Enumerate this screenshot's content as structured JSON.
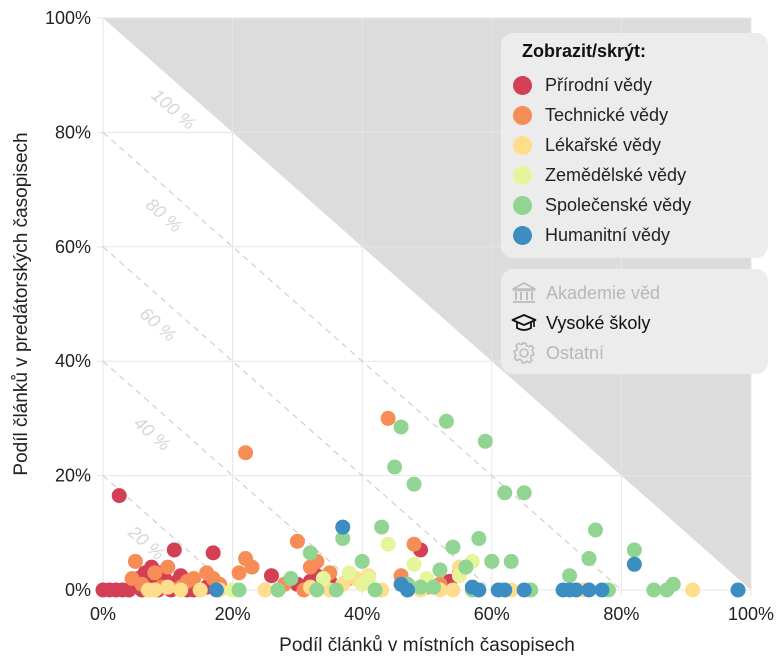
{
  "chart_data": {
    "type": "scatter",
    "xlabel": "Podíl článků v místních časopisech",
    "ylabel": "Podíl článků v predátorských časopisech",
    "xlim": [
      0,
      100
    ],
    "ylim": [
      0,
      100
    ],
    "x_ticks": [
      "0%",
      "20%",
      "40%",
      "60%",
      "80%",
      "100%"
    ],
    "y_ticks": [
      "0%",
      "20%",
      "40%",
      "60%",
      "80%",
      "100%"
    ],
    "diagonal_labels": [
      "100 %",
      "80 %",
      "60 %",
      "40 %",
      "20 %"
    ],
    "grid": true,
    "legend_position": "top-right",
    "series": [
      {
        "name": "Přírodní vědy",
        "color": "#d33f54",
        "points": [
          [
            0,
            0
          ],
          [
            1,
            0
          ],
          [
            2,
            0
          ],
          [
            2.5,
            16.5
          ],
          [
            3,
            0
          ],
          [
            4,
            0
          ],
          [
            4.5,
            0.5
          ],
          [
            5,
            1
          ],
          [
            5.5,
            2
          ],
          [
            6,
            0
          ],
          [
            6.5,
            3
          ],
          [
            7,
            2
          ],
          [
            7.5,
            4
          ],
          [
            8,
            1
          ],
          [
            8.5,
            0
          ],
          [
            9,
            3
          ],
          [
            9.5,
            2
          ],
          [
            10,
            1
          ],
          [
            10.5,
            0
          ],
          [
            11,
            7
          ],
          [
            11.5,
            1.5
          ],
          [
            12,
            2.5
          ],
          [
            13,
            0
          ],
          [
            13.5,
            1
          ],
          [
            14,
            0
          ],
          [
            16,
            0.5
          ],
          [
            17,
            6.5
          ],
          [
            26,
            2.5
          ],
          [
            30,
            1
          ],
          [
            32,
            1.5
          ],
          [
            33,
            2.5
          ],
          [
            35,
            1.5
          ],
          [
            49,
            7
          ],
          [
            53.5,
            1.5
          ]
        ]
      },
      {
        "name": "Technické vědy",
        "color": "#f78d56",
        "points": [
          [
            4.5,
            2
          ],
          [
            5,
            5
          ],
          [
            6,
            1
          ],
          [
            7,
            0
          ],
          [
            8,
            3
          ],
          [
            9,
            0.5
          ],
          [
            10,
            4
          ],
          [
            12,
            0.5
          ],
          [
            13,
            1.5
          ],
          [
            14,
            2
          ],
          [
            15,
            0
          ],
          [
            16,
            3
          ],
          [
            17,
            2
          ],
          [
            18,
            1
          ],
          [
            21,
            3
          ],
          [
            22,
            5.5
          ],
          [
            22,
            24
          ],
          [
            23,
            4
          ],
          [
            28,
            1
          ],
          [
            30,
            8.5
          ],
          [
            31,
            0
          ],
          [
            32,
            4
          ],
          [
            33,
            5
          ],
          [
            35,
            3
          ],
          [
            38,
            2
          ],
          [
            44,
            30
          ],
          [
            46,
            2.5
          ],
          [
            48,
            8
          ],
          [
            50,
            0.5
          ],
          [
            52,
            1
          ],
          [
            55,
            3
          ]
        ]
      },
      {
        "name": "Lékařské vědy",
        "color": "#fedd8d",
        "points": [
          [
            7,
            0
          ],
          [
            8,
            0
          ],
          [
            10,
            0.5
          ],
          [
            12,
            0
          ],
          [
            15,
            0
          ],
          [
            18,
            0
          ],
          [
            25,
            0
          ],
          [
            32,
            0.5
          ],
          [
            35,
            0
          ],
          [
            37,
            1
          ],
          [
            39,
            2
          ],
          [
            41,
            2.5
          ],
          [
            43,
            0
          ],
          [
            47,
            0
          ],
          [
            49,
            0
          ],
          [
            52,
            0
          ],
          [
            54,
            0
          ],
          [
            55,
            4
          ],
          [
            60,
            5
          ],
          [
            63,
            0
          ],
          [
            66,
            0
          ],
          [
            74,
            0
          ],
          [
            91,
            0
          ]
        ]
      },
      {
        "name": "Zemědělské vědy",
        "color": "#e7f59a",
        "points": [
          [
            20,
            0
          ],
          [
            34,
            2
          ],
          [
            38,
            3
          ],
          [
            40,
            1
          ],
          [
            41,
            2
          ],
          [
            44,
            8
          ],
          [
            48,
            4.5
          ],
          [
            50,
            2
          ],
          [
            55,
            2.5
          ],
          [
            57,
            5
          ]
        ]
      },
      {
        "name": "Společenské vědy",
        "color": "#92d491",
        "points": [
          [
            21,
            0
          ],
          [
            27,
            0
          ],
          [
            29,
            2
          ],
          [
            32,
            6.5
          ],
          [
            33,
            0
          ],
          [
            36,
            0
          ],
          [
            37,
            9
          ],
          [
            40,
            5
          ],
          [
            42,
            0
          ],
          [
            43,
            11
          ],
          [
            45,
            21.5
          ],
          [
            46,
            28.5
          ],
          [
            47,
            1
          ],
          [
            48,
            18.5
          ],
          [
            49,
            0.5
          ],
          [
            51,
            0.5
          ],
          [
            52,
            3.5
          ],
          [
            53,
            29.5
          ],
          [
            54,
            7.5
          ],
          [
            56,
            4
          ],
          [
            57,
            0
          ],
          [
            58,
            9
          ],
          [
            59,
            26
          ],
          [
            60,
            5
          ],
          [
            62,
            17
          ],
          [
            63,
            5
          ],
          [
            65,
            17
          ],
          [
            66,
            0
          ],
          [
            72,
            2.5
          ],
          [
            75,
            5.5
          ],
          [
            76,
            10.5
          ],
          [
            78,
            0
          ],
          [
            82,
            7
          ],
          [
            85,
            0
          ],
          [
            87,
            0
          ],
          [
            88,
            1
          ]
        ]
      },
      {
        "name": "Humanitní vědy",
        "color": "#3b8dc2",
        "points": [
          [
            17.5,
            0
          ],
          [
            37,
            11
          ],
          [
            46,
            1
          ],
          [
            47,
            0
          ],
          [
            57,
            0.5
          ],
          [
            58,
            0
          ],
          [
            61,
            0
          ],
          [
            62,
            0
          ],
          [
            65,
            0
          ],
          [
            71,
            0
          ],
          [
            72,
            0
          ],
          [
            73,
            0
          ],
          [
            75,
            0
          ],
          [
            77,
            0
          ],
          [
            82,
            4.5
          ],
          [
            98,
            0
          ]
        ]
      }
    ]
  },
  "legend": {
    "title": "Zobrazit/skrýt:",
    "fields": [
      {
        "label": "Přírodní vědy",
        "color": "#d33f54"
      },
      {
        "label": "Technické vědy",
        "color": "#f78d56"
      },
      {
        "label": "Lékařské vědy",
        "color": "#fedd8d"
      },
      {
        "label": "Zemědělské vědy",
        "color": "#e7f59a"
      },
      {
        "label": "Společenské vědy",
        "color": "#92d491"
      },
      {
        "label": "Humanitní vědy",
        "color": "#3b8dc2"
      }
    ],
    "institutions": [
      {
        "label": "Akademie věd",
        "icon": "bank-icon",
        "active": false
      },
      {
        "label": "Vysoké školy",
        "icon": "graduation-cap-icon",
        "active": true
      },
      {
        "label": "Ostatní",
        "icon": "gear-icon",
        "active": false
      }
    ]
  }
}
